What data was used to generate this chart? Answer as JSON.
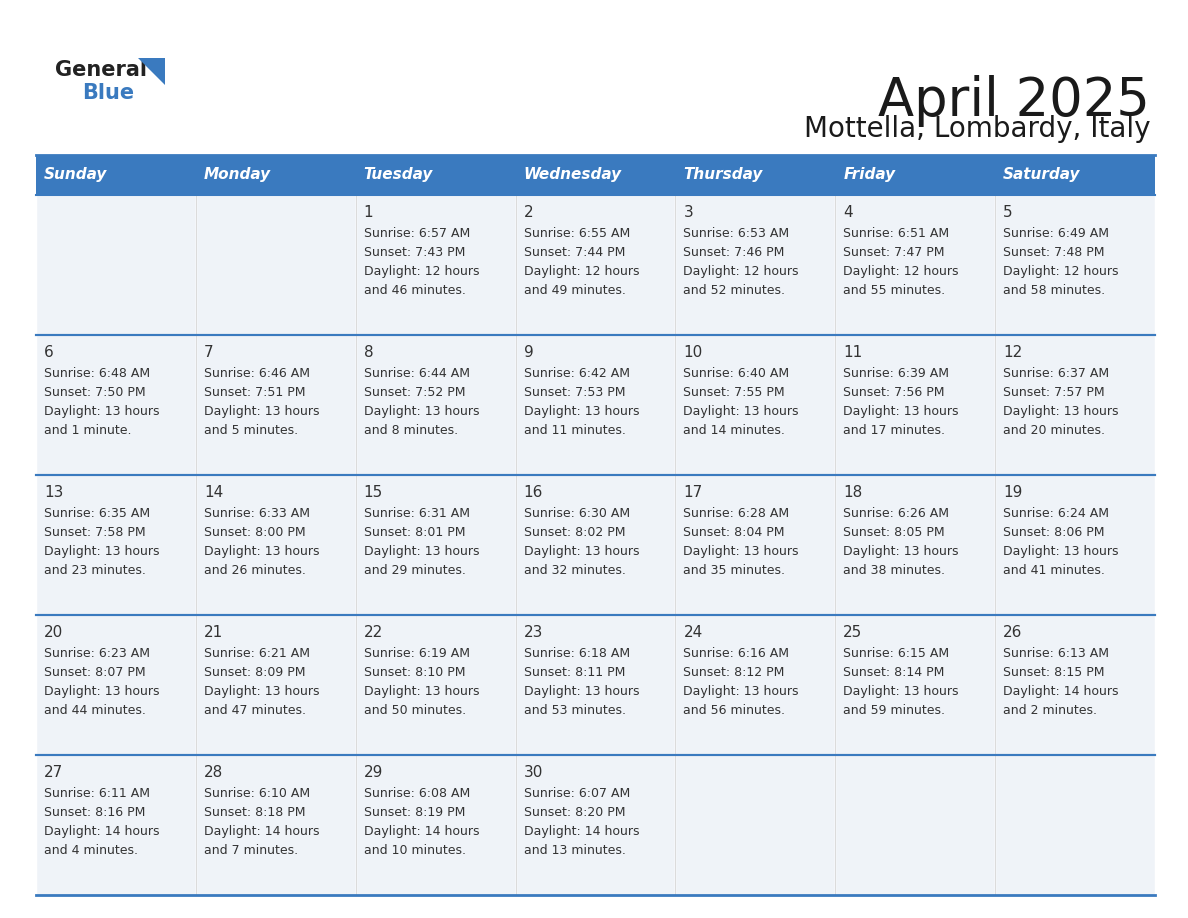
{
  "title": "April 2025",
  "subtitle": "Mottella, Lombardy, Italy",
  "days_of_week": [
    "Sunday",
    "Monday",
    "Tuesday",
    "Wednesday",
    "Thursday",
    "Friday",
    "Saturday"
  ],
  "header_bg": "#3a7abf",
  "header_text": "#ffffff",
  "cell_bg": "#eff3f8",
  "grid_line_color": "#3a7abf",
  "text_color": "#333333",
  "title_color": "#1a1a1a",
  "calendar_data": [
    [
      {
        "day": "",
        "line1": "",
        "line2": "",
        "line3": "",
        "line4": ""
      },
      {
        "day": "",
        "line1": "",
        "line2": "",
        "line3": "",
        "line4": ""
      },
      {
        "day": "1",
        "line1": "Sunrise: 6:57 AM",
        "line2": "Sunset: 7:43 PM",
        "line3": "Daylight: 12 hours",
        "line4": "and 46 minutes."
      },
      {
        "day": "2",
        "line1": "Sunrise: 6:55 AM",
        "line2": "Sunset: 7:44 PM",
        "line3": "Daylight: 12 hours",
        "line4": "and 49 minutes."
      },
      {
        "day": "3",
        "line1": "Sunrise: 6:53 AM",
        "line2": "Sunset: 7:46 PM",
        "line3": "Daylight: 12 hours",
        "line4": "and 52 minutes."
      },
      {
        "day": "4",
        "line1": "Sunrise: 6:51 AM",
        "line2": "Sunset: 7:47 PM",
        "line3": "Daylight: 12 hours",
        "line4": "and 55 minutes."
      },
      {
        "day": "5",
        "line1": "Sunrise: 6:49 AM",
        "line2": "Sunset: 7:48 PM",
        "line3": "Daylight: 12 hours",
        "line4": "and 58 minutes."
      }
    ],
    [
      {
        "day": "6",
        "line1": "Sunrise: 6:48 AM",
        "line2": "Sunset: 7:50 PM",
        "line3": "Daylight: 13 hours",
        "line4": "and 1 minute."
      },
      {
        "day": "7",
        "line1": "Sunrise: 6:46 AM",
        "line2": "Sunset: 7:51 PM",
        "line3": "Daylight: 13 hours",
        "line4": "and 5 minutes."
      },
      {
        "day": "8",
        "line1": "Sunrise: 6:44 AM",
        "line2": "Sunset: 7:52 PM",
        "line3": "Daylight: 13 hours",
        "line4": "and 8 minutes."
      },
      {
        "day": "9",
        "line1": "Sunrise: 6:42 AM",
        "line2": "Sunset: 7:53 PM",
        "line3": "Daylight: 13 hours",
        "line4": "and 11 minutes."
      },
      {
        "day": "10",
        "line1": "Sunrise: 6:40 AM",
        "line2": "Sunset: 7:55 PM",
        "line3": "Daylight: 13 hours",
        "line4": "and 14 minutes."
      },
      {
        "day": "11",
        "line1": "Sunrise: 6:39 AM",
        "line2": "Sunset: 7:56 PM",
        "line3": "Daylight: 13 hours",
        "line4": "and 17 minutes."
      },
      {
        "day": "12",
        "line1": "Sunrise: 6:37 AM",
        "line2": "Sunset: 7:57 PM",
        "line3": "Daylight: 13 hours",
        "line4": "and 20 minutes."
      }
    ],
    [
      {
        "day": "13",
        "line1": "Sunrise: 6:35 AM",
        "line2": "Sunset: 7:58 PM",
        "line3": "Daylight: 13 hours",
        "line4": "and 23 minutes."
      },
      {
        "day": "14",
        "line1": "Sunrise: 6:33 AM",
        "line2": "Sunset: 8:00 PM",
        "line3": "Daylight: 13 hours",
        "line4": "and 26 minutes."
      },
      {
        "day": "15",
        "line1": "Sunrise: 6:31 AM",
        "line2": "Sunset: 8:01 PM",
        "line3": "Daylight: 13 hours",
        "line4": "and 29 minutes."
      },
      {
        "day": "16",
        "line1": "Sunrise: 6:30 AM",
        "line2": "Sunset: 8:02 PM",
        "line3": "Daylight: 13 hours",
        "line4": "and 32 minutes."
      },
      {
        "day": "17",
        "line1": "Sunrise: 6:28 AM",
        "line2": "Sunset: 8:04 PM",
        "line3": "Daylight: 13 hours",
        "line4": "and 35 minutes."
      },
      {
        "day": "18",
        "line1": "Sunrise: 6:26 AM",
        "line2": "Sunset: 8:05 PM",
        "line3": "Daylight: 13 hours",
        "line4": "and 38 minutes."
      },
      {
        "day": "19",
        "line1": "Sunrise: 6:24 AM",
        "line2": "Sunset: 8:06 PM",
        "line3": "Daylight: 13 hours",
        "line4": "and 41 minutes."
      }
    ],
    [
      {
        "day": "20",
        "line1": "Sunrise: 6:23 AM",
        "line2": "Sunset: 8:07 PM",
        "line3": "Daylight: 13 hours",
        "line4": "and 44 minutes."
      },
      {
        "day": "21",
        "line1": "Sunrise: 6:21 AM",
        "line2": "Sunset: 8:09 PM",
        "line3": "Daylight: 13 hours",
        "line4": "and 47 minutes."
      },
      {
        "day": "22",
        "line1": "Sunrise: 6:19 AM",
        "line2": "Sunset: 8:10 PM",
        "line3": "Daylight: 13 hours",
        "line4": "and 50 minutes."
      },
      {
        "day": "23",
        "line1": "Sunrise: 6:18 AM",
        "line2": "Sunset: 8:11 PM",
        "line3": "Daylight: 13 hours",
        "line4": "and 53 minutes."
      },
      {
        "day": "24",
        "line1": "Sunrise: 6:16 AM",
        "line2": "Sunset: 8:12 PM",
        "line3": "Daylight: 13 hours",
        "line4": "and 56 minutes."
      },
      {
        "day": "25",
        "line1": "Sunrise: 6:15 AM",
        "line2": "Sunset: 8:14 PM",
        "line3": "Daylight: 13 hours",
        "line4": "and 59 minutes."
      },
      {
        "day": "26",
        "line1": "Sunrise: 6:13 AM",
        "line2": "Sunset: 8:15 PM",
        "line3": "Daylight: 14 hours",
        "line4": "and 2 minutes."
      }
    ],
    [
      {
        "day": "27",
        "line1": "Sunrise: 6:11 AM",
        "line2": "Sunset: 8:16 PM",
        "line3": "Daylight: 14 hours",
        "line4": "and 4 minutes."
      },
      {
        "day": "28",
        "line1": "Sunrise: 6:10 AM",
        "line2": "Sunset: 8:18 PM",
        "line3": "Daylight: 14 hours",
        "line4": "and 7 minutes."
      },
      {
        "day": "29",
        "line1": "Sunrise: 6:08 AM",
        "line2": "Sunset: 8:19 PM",
        "line3": "Daylight: 14 hours",
        "line4": "and 10 minutes."
      },
      {
        "day": "30",
        "line1": "Sunrise: 6:07 AM",
        "line2": "Sunset: 8:20 PM",
        "line3": "Daylight: 14 hours",
        "line4": "and 13 minutes."
      },
      {
        "day": "",
        "line1": "",
        "line2": "",
        "line3": "",
        "line4": ""
      },
      {
        "day": "",
        "line1": "",
        "line2": "",
        "line3": "",
        "line4": ""
      },
      {
        "day": "",
        "line1": "",
        "line2": "",
        "line3": "",
        "line4": ""
      }
    ]
  ]
}
